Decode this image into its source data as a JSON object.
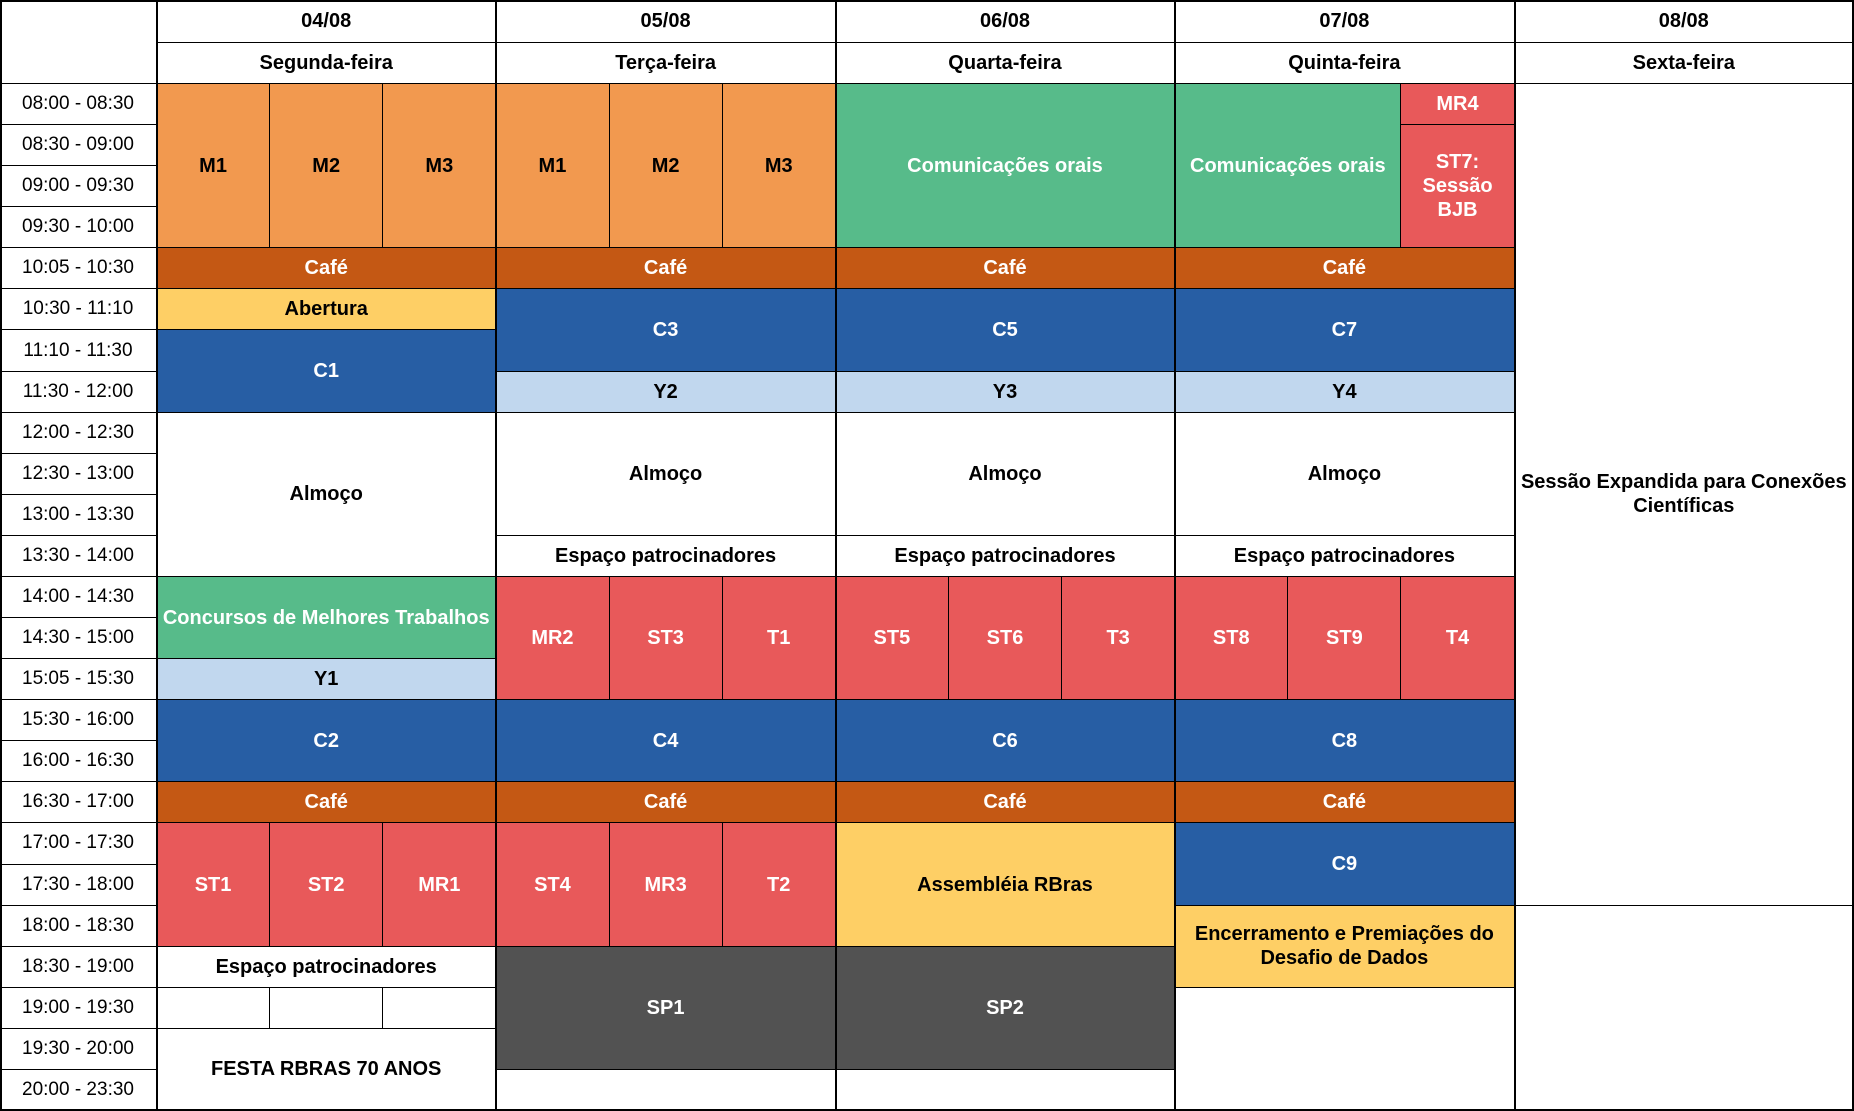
{
  "dates": [
    "04/08",
    "05/08",
    "06/08",
    "07/08",
    "08/08"
  ],
  "weekdays": [
    "Segunda-feira",
    "Terça-feira",
    "Quarta-feira",
    "Quinta-feira",
    "Sexta-feira"
  ],
  "times": [
    "08:00 - 08:30",
    "08:30 - 09:00",
    "09:00 - 09:30",
    "09:30 - 10:00",
    "10:05 - 10:30",
    "10:30 - 11:10",
    "11:10 - 11:30",
    "11:30 - 12:00",
    "12:00 - 12:30",
    "12:30 - 13:00",
    "13:00 - 13:30",
    "13:30 - 14:00",
    "14:00 - 14:30",
    "14:30 - 15:00",
    "15:05 - 15:30",
    "15:30 - 16:00",
    "16:00 - 16:30",
    "16:30 - 17:00",
    "17:00 - 17:30",
    "17:30 - 18:00",
    "18:00 - 18:30",
    "18:30 - 19:00",
    "19:00 - 19:30",
    "19:30 - 20:00",
    "20:00 - 23:30"
  ],
  "colors": {
    "orange": "#f2994f",
    "green": "#57bb8a",
    "brown": "#c45814",
    "yellow": "#fecf65",
    "blue": "#275ea4",
    "lightblue": "#c1d7ee",
    "red": "#e8595a",
    "dark": "#525252"
  },
  "events": [
    {
      "day": 0,
      "sub": 0,
      "span": 1,
      "row": 0,
      "rows": 4,
      "label": "M1",
      "color": "orange"
    },
    {
      "day": 0,
      "sub": 1,
      "span": 1,
      "row": 0,
      "rows": 4,
      "label": "M2",
      "color": "orange"
    },
    {
      "day": 0,
      "sub": 2,
      "span": 1,
      "row": 0,
      "rows": 4,
      "label": "M3",
      "color": "orange"
    },
    {
      "day": 0,
      "sub": 0,
      "span": 3,
      "row": 4,
      "rows": 1,
      "label": "Café",
      "color": "brown"
    },
    {
      "day": 0,
      "sub": 0,
      "span": 3,
      "row": 5,
      "rows": 1,
      "label": "Abertura",
      "color": "yellow"
    },
    {
      "day": 0,
      "sub": 0,
      "span": 3,
      "row": 6,
      "rows": 2,
      "label": "C1",
      "color": "blue"
    },
    {
      "day": 0,
      "sub": 0,
      "span": 3,
      "row": 8,
      "rows": 4,
      "label": "Almoço",
      "color": "white"
    },
    {
      "day": 0,
      "sub": 0,
      "span": 3,
      "row": 12,
      "rows": 2,
      "label": "Concursos de Melhores Trabalhos",
      "color": "green"
    },
    {
      "day": 0,
      "sub": 0,
      "span": 3,
      "row": 14,
      "rows": 1,
      "label": "Y1",
      "color": "lightblue"
    },
    {
      "day": 0,
      "sub": 0,
      "span": 3,
      "row": 15,
      "rows": 2,
      "label": "C2",
      "color": "blue"
    },
    {
      "day": 0,
      "sub": 0,
      "span": 3,
      "row": 17,
      "rows": 1,
      "label": "Café",
      "color": "brown"
    },
    {
      "day": 0,
      "sub": 0,
      "span": 1,
      "row": 18,
      "rows": 3,
      "label": "ST1",
      "color": "red"
    },
    {
      "day": 0,
      "sub": 1,
      "span": 1,
      "row": 18,
      "rows": 3,
      "label": "ST2",
      "color": "red"
    },
    {
      "day": 0,
      "sub": 2,
      "span": 1,
      "row": 18,
      "rows": 3,
      "label": "MR1",
      "color": "red"
    },
    {
      "day": 0,
      "sub": 0,
      "span": 3,
      "row": 21,
      "rows": 1,
      "label": "Espaço patrocinadores",
      "color": "white"
    },
    {
      "day": 0,
      "sub": 0,
      "span": 1,
      "row": 22,
      "rows": 1,
      "label": "",
      "color": "white"
    },
    {
      "day": 0,
      "sub": 1,
      "span": 1,
      "row": 22,
      "rows": 1,
      "label": "",
      "color": "white"
    },
    {
      "day": 0,
      "sub": 2,
      "span": 1,
      "row": 22,
      "rows": 1,
      "label": "",
      "color": "white"
    },
    {
      "day": 0,
      "sub": 0,
      "span": 3,
      "row": 23,
      "rows": 2,
      "label": "FESTA RBRAS 70 ANOS",
      "color": "white"
    },
    {
      "day": 1,
      "sub": 0,
      "span": 1,
      "row": 0,
      "rows": 4,
      "label": "M1",
      "color": "orange"
    },
    {
      "day": 1,
      "sub": 1,
      "span": 1,
      "row": 0,
      "rows": 4,
      "label": "M2",
      "color": "orange"
    },
    {
      "day": 1,
      "sub": 2,
      "span": 1,
      "row": 0,
      "rows": 4,
      "label": "M3",
      "color": "orange"
    },
    {
      "day": 1,
      "sub": 0,
      "span": 3,
      "row": 4,
      "rows": 1,
      "label": "Café",
      "color": "brown"
    },
    {
      "day": 1,
      "sub": 0,
      "span": 3,
      "row": 5,
      "rows": 2,
      "label": "C3",
      "color": "blue"
    },
    {
      "day": 1,
      "sub": 0,
      "span": 3,
      "row": 7,
      "rows": 1,
      "label": "Y2",
      "color": "lightblue"
    },
    {
      "day": 1,
      "sub": 0,
      "span": 3,
      "row": 8,
      "rows": 3,
      "label": "Almoço",
      "color": "white"
    },
    {
      "day": 1,
      "sub": 0,
      "span": 3,
      "row": 11,
      "rows": 1,
      "label": "Espaço patrocinadores",
      "color": "white"
    },
    {
      "day": 1,
      "sub": 0,
      "span": 1,
      "row": 12,
      "rows": 3,
      "label": "MR2",
      "color": "red"
    },
    {
      "day": 1,
      "sub": 1,
      "span": 1,
      "row": 12,
      "rows": 3,
      "label": "ST3",
      "color": "red"
    },
    {
      "day": 1,
      "sub": 2,
      "span": 1,
      "row": 12,
      "rows": 3,
      "label": "T1",
      "color": "red"
    },
    {
      "day": 1,
      "sub": 0,
      "span": 3,
      "row": 15,
      "rows": 2,
      "label": "C4",
      "color": "blue"
    },
    {
      "day": 1,
      "sub": 0,
      "span": 3,
      "row": 17,
      "rows": 1,
      "label": "Café",
      "color": "brown"
    },
    {
      "day": 1,
      "sub": 0,
      "span": 1,
      "row": 18,
      "rows": 3,
      "label": "ST4",
      "color": "red"
    },
    {
      "day": 1,
      "sub": 1,
      "span": 1,
      "row": 18,
      "rows": 3,
      "label": "MR3",
      "color": "red"
    },
    {
      "day": 1,
      "sub": 2,
      "span": 1,
      "row": 18,
      "rows": 3,
      "label": "T2",
      "color": "red"
    },
    {
      "day": 1,
      "sub": 0,
      "span": 3,
      "row": 21,
      "rows": 3,
      "label": "SP1",
      "color": "dark"
    },
    {
      "day": 1,
      "sub": 0,
      "span": 3,
      "row": 24,
      "rows": 1,
      "label": "",
      "color": "white"
    },
    {
      "day": 2,
      "sub": 0,
      "span": 3,
      "row": 0,
      "rows": 4,
      "label": "Comunicações orais",
      "color": "green"
    },
    {
      "day": 2,
      "sub": 0,
      "span": 3,
      "row": 4,
      "rows": 1,
      "label": "Café",
      "color": "brown"
    },
    {
      "day": 2,
      "sub": 0,
      "span": 3,
      "row": 5,
      "rows": 2,
      "label": "C5",
      "color": "blue"
    },
    {
      "day": 2,
      "sub": 0,
      "span": 3,
      "row": 7,
      "rows": 1,
      "label": "Y3",
      "color": "lightblue"
    },
    {
      "day": 2,
      "sub": 0,
      "span": 3,
      "row": 8,
      "rows": 3,
      "label": "Almoço",
      "color": "white"
    },
    {
      "day": 2,
      "sub": 0,
      "span": 3,
      "row": 11,
      "rows": 1,
      "label": "Espaço patrocinadores",
      "color": "white"
    },
    {
      "day": 2,
      "sub": 0,
      "span": 1,
      "row": 12,
      "rows": 3,
      "label": "ST5",
      "color": "red"
    },
    {
      "day": 2,
      "sub": 1,
      "span": 1,
      "row": 12,
      "rows": 3,
      "label": "ST6",
      "color": "red"
    },
    {
      "day": 2,
      "sub": 2,
      "span": 1,
      "row": 12,
      "rows": 3,
      "label": "T3",
      "color": "red"
    },
    {
      "day": 2,
      "sub": 0,
      "span": 3,
      "row": 15,
      "rows": 2,
      "label": "C6",
      "color": "blue"
    },
    {
      "day": 2,
      "sub": 0,
      "span": 3,
      "row": 17,
      "rows": 1,
      "label": "Café",
      "color": "brown"
    },
    {
      "day": 2,
      "sub": 0,
      "span": 3,
      "row": 18,
      "rows": 3,
      "label": "Assembléia RBras",
      "color": "yellow"
    },
    {
      "day": 2,
      "sub": 0,
      "span": 3,
      "row": 21,
      "rows": 3,
      "label": "SP2",
      "color": "dark"
    },
    {
      "day": 2,
      "sub": 0,
      "span": 3,
      "row": 24,
      "rows": 1,
      "label": "",
      "color": "white"
    },
    {
      "day": 3,
      "sub": 0,
      "span": 2,
      "row": 0,
      "rows": 4,
      "label": "Comunicações orais",
      "color": "green"
    },
    {
      "day": 3,
      "sub": 2,
      "span": 1,
      "row": 0,
      "rows": 1,
      "label": "MR4",
      "color": "red"
    },
    {
      "day": 3,
      "sub": 2,
      "span": 1,
      "row": 1,
      "rows": 3,
      "label": "ST7: Sessão BJB",
      "color": "red"
    },
    {
      "day": 3,
      "sub": 0,
      "span": 3,
      "row": 4,
      "rows": 1,
      "label": "Café",
      "color": "brown"
    },
    {
      "day": 3,
      "sub": 0,
      "span": 3,
      "row": 5,
      "rows": 2,
      "label": "C7",
      "color": "blue"
    },
    {
      "day": 3,
      "sub": 0,
      "span": 3,
      "row": 7,
      "rows": 1,
      "label": "Y4",
      "color": "lightblue"
    },
    {
      "day": 3,
      "sub": 0,
      "span": 3,
      "row": 8,
      "rows": 3,
      "label": "Almoço",
      "color": "white"
    },
    {
      "day": 3,
      "sub": 0,
      "span": 3,
      "row": 11,
      "rows": 1,
      "label": "Espaço patrocinadores",
      "color": "white"
    },
    {
      "day": 3,
      "sub": 0,
      "span": 1,
      "row": 12,
      "rows": 3,
      "label": "ST8",
      "color": "red"
    },
    {
      "day": 3,
      "sub": 1,
      "span": 1,
      "row": 12,
      "rows": 3,
      "label": "ST9",
      "color": "red"
    },
    {
      "day": 3,
      "sub": 2,
      "span": 1,
      "row": 12,
      "rows": 3,
      "label": "T4",
      "color": "red"
    },
    {
      "day": 3,
      "sub": 0,
      "span": 3,
      "row": 15,
      "rows": 2,
      "label": "C8",
      "color": "blue"
    },
    {
      "day": 3,
      "sub": 0,
      "span": 3,
      "row": 17,
      "rows": 1,
      "label": "Café",
      "color": "brown"
    },
    {
      "day": 3,
      "sub": 0,
      "span": 3,
      "row": 18,
      "rows": 2,
      "label": "C9",
      "color": "blue"
    },
    {
      "day": 3,
      "sub": 0,
      "span": 3,
      "row": 20,
      "rows": 2,
      "label": "Encerramento e Premiações do Desafio de Dados",
      "color": "yellow"
    },
    {
      "day": 3,
      "sub": 0,
      "span": 3,
      "row": 22,
      "rows": 3,
      "label": "",
      "color": "white"
    },
    {
      "day": 4,
      "sub": 0,
      "span": 3,
      "row": 0,
      "rows": 20,
      "label": "Sessão Expandida para Conexões Científicas",
      "color": "white"
    },
    {
      "day": 4,
      "sub": 0,
      "span": 3,
      "row": 20,
      "rows": 5,
      "label": "",
      "color": "white"
    }
  ]
}
